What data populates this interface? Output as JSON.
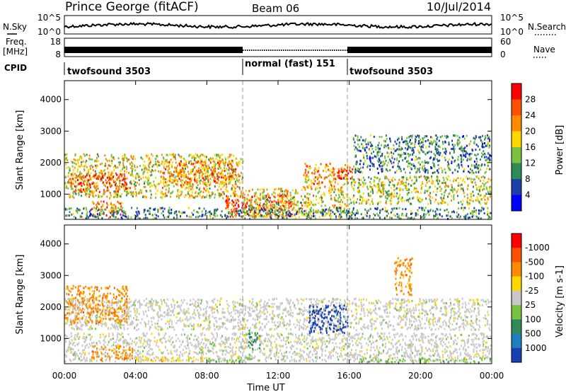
{
  "header": {
    "station": "Prince George (fitACF)",
    "beam": "Beam 06",
    "date": "10/Jul/2014"
  },
  "nsky_panel": {
    "left_label": "N.Sky",
    "right_label": "N.Search",
    "left_ticks": [
      "10^5",
      "10^0"
    ],
    "right_ticks": [
      "10^5",
      "10^0"
    ]
  },
  "freq_panel": {
    "left_label_1": "Freq.",
    "left_label_2": "[MHz]",
    "right_label": "Nave",
    "left_ticks": [
      "18",
      "8"
    ],
    "right_ticks": [
      "60",
      "0"
    ]
  },
  "cpid_panel": {
    "label": "CPID",
    "segments": [
      {
        "label": "twofsound 3503",
        "start": 0,
        "end": 10
      },
      {
        "label": "normal (fast) 151",
        "start": 10,
        "end": 16
      },
      {
        "label": "twofsound 3503",
        "start": 16,
        "end": 24
      }
    ]
  },
  "chart_data": [
    {
      "type": "heatmap",
      "title": "",
      "xlabel": "Time UT",
      "ylabel": "Slant Range [km]",
      "xlim": [
        0,
        24
      ],
      "ylim": [
        200,
        4600
      ],
      "yticks": [
        1000,
        2000,
        3000,
        4000
      ],
      "ytick_labels": [
        "1000",
        "2000",
        "3000",
        "4000"
      ],
      "colorbar": {
        "label": "Power [dB]",
        "ticks": [
          "4",
          "8",
          "12",
          "16",
          "20",
          "24",
          "28"
        ],
        "colors": [
          "#0000ff",
          "#1e3fa8",
          "#2e8b57",
          "#7cc242",
          "#ffd700",
          "#ff8c00",
          "#ff5000",
          "#ff0000"
        ]
      },
      "regions": [
        {
          "t0": 0.0,
          "t1": 10.0,
          "r0": 900,
          "r1": 2300,
          "level": 0.55
        },
        {
          "t0": 0.2,
          "t1": 3.5,
          "r0": 1100,
          "r1": 1700,
          "level": 0.85
        },
        {
          "t0": 1.5,
          "t1": 3.2,
          "r0": 300,
          "r1": 800,
          "level": 0.8
        },
        {
          "t0": 5.5,
          "t1": 9.6,
          "r0": 1300,
          "r1": 2100,
          "level": 0.75
        },
        {
          "t0": 9.0,
          "t1": 12.8,
          "r0": 300,
          "r1": 1000,
          "level": 0.9
        },
        {
          "t0": 13.4,
          "t1": 15.9,
          "r0": 1200,
          "r1": 2000,
          "level": 0.7
        },
        {
          "t0": 15.0,
          "t1": 16.2,
          "r0": 1500,
          "r1": 1900,
          "level": 0.95
        },
        {
          "t0": 16.0,
          "t1": 24.0,
          "r0": 700,
          "r1": 1600,
          "level": 0.5
        },
        {
          "t0": 16.2,
          "t1": 24.0,
          "r0": 1700,
          "r1": 2900,
          "level": 0.28
        },
        {
          "t0": 10.0,
          "t1": 16.0,
          "r0": 300,
          "r1": 1200,
          "level": 0.55
        },
        {
          "t0": 0.0,
          "t1": 24.0,
          "r0": 200,
          "r1": 600,
          "level": 0.3
        }
      ]
    },
    {
      "type": "heatmap",
      "title": "",
      "xlabel": "Time UT",
      "ylabel": "Slant Range [km]",
      "xlim": [
        0,
        24
      ],
      "ylim": [
        200,
        4600
      ],
      "yticks": [
        1000,
        2000,
        3000,
        4000
      ],
      "ytick_labels": [
        "1000",
        "2000",
        "3000",
        "4000"
      ],
      "xticks": [
        0,
        4,
        8,
        12,
        16,
        20,
        24
      ],
      "xtick_labels": [
        "00:00",
        "04:00",
        "08:00",
        "12:00",
        "16:00",
        "20:00",
        "00:00"
      ],
      "colorbar": {
        "label": "Velocity [m s-1]",
        "ticks": [
          "1000",
          "500",
          "100",
          "25",
          "-25",
          "-100",
          "-500",
          "-1000"
        ],
        "colors": [
          "#1a3fb0",
          "#1e7fc0",
          "#2e8b57",
          "#7cc242",
          "#c8c8c8",
          "#ffd700",
          "#ff8c00",
          "#ff5000",
          "#ff0000"
        ]
      },
      "regions": [
        {
          "t0": 0.0,
          "t1": 24.0,
          "r0": 1300,
          "r1": 2300,
          "level": 4
        },
        {
          "t0": 0.0,
          "t1": 24.0,
          "r0": 300,
          "r1": 1200,
          "level": 4
        },
        {
          "t0": 0.0,
          "t1": 3.5,
          "r0": 1500,
          "r1": 2700,
          "level": 6
        },
        {
          "t0": 1.5,
          "t1": 3.8,
          "r0": 350,
          "r1": 800,
          "level": 6
        },
        {
          "t0": 4.0,
          "t1": 8.0,
          "r0": 300,
          "r1": 450,
          "level": 5
        },
        {
          "t0": 8.0,
          "t1": 10.5,
          "r0": 250,
          "r1": 420,
          "level": 3
        },
        {
          "t0": 10.3,
          "t1": 11.0,
          "r0": 700,
          "r1": 1300,
          "level": 2
        },
        {
          "t0": 13.7,
          "t1": 15.9,
          "r0": 1200,
          "r1": 2100,
          "level": 0
        },
        {
          "t0": 18.5,
          "t1": 19.5,
          "r0": 2400,
          "r1": 3600,
          "level": 6
        },
        {
          "t0": 16.5,
          "t1": 24.0,
          "r0": 250,
          "r1": 400,
          "level": 3
        }
      ]
    }
  ],
  "footer": {
    "xlabel": "Time UT"
  }
}
